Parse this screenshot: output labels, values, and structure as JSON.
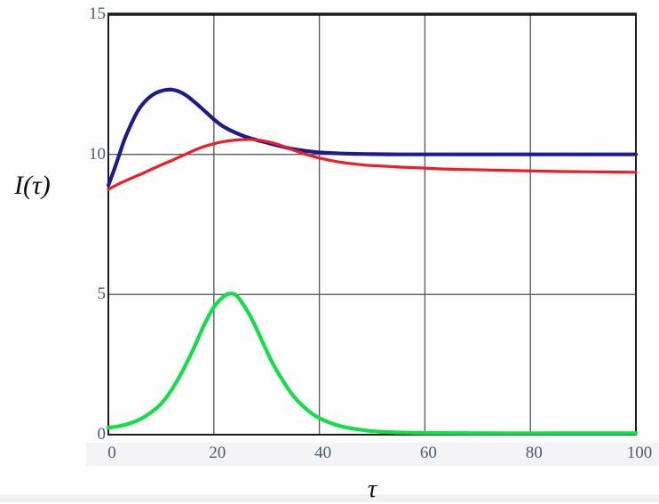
{
  "figure": {
    "background": "#fefefe",
    "tick_strip_color": "#f4f4f6",
    "bottom_strip_color": "#f1f1f4"
  },
  "chart_data": {
    "type": "line",
    "title": "",
    "xlabel": "τ",
    "ylabel": "I(τ)",
    "xlim": [
      0,
      100
    ],
    "ylim": [
      0,
      15
    ],
    "x_ticks": [
      0,
      20,
      40,
      60,
      80,
      100
    ],
    "y_ticks": [
      0,
      5,
      10,
      15
    ],
    "grid": true,
    "legend_position": "none",
    "colors": {
      "grid": "#5d5d5d",
      "border": "#1c1c1c",
      "tick_label": "#4d5a77",
      "axis_title": "#0d0d0d"
    },
    "series": [
      {
        "name": "navy-curve",
        "color": "#1b1b8e",
        "stroke_width": 4.2,
        "points": [
          [
            0,
            8.9
          ],
          [
            1,
            9.4
          ],
          [
            2,
            9.95
          ],
          [
            3,
            10.5
          ],
          [
            4,
            10.95
          ],
          [
            5,
            11.35
          ],
          [
            6,
            11.67
          ],
          [
            7,
            11.9
          ],
          [
            8,
            12.07
          ],
          [
            9,
            12.19
          ],
          [
            10,
            12.26
          ],
          [
            11,
            12.3
          ],
          [
            12,
            12.31
          ],
          [
            13,
            12.27
          ],
          [
            14,
            12.19
          ],
          [
            15,
            12.07
          ],
          [
            16,
            11.92
          ],
          [
            17,
            11.76
          ],
          [
            18,
            11.59
          ],
          [
            19,
            11.42
          ],
          [
            20,
            11.25
          ],
          [
            21,
            11.1
          ],
          [
            22,
            10.97
          ],
          [
            24,
            10.78
          ],
          [
            26,
            10.63
          ],
          [
            28,
            10.52
          ],
          [
            30,
            10.42
          ],
          [
            32,
            10.32
          ],
          [
            34,
            10.23
          ],
          [
            36,
            10.16
          ],
          [
            38,
            10.11
          ],
          [
            40,
            10.07
          ],
          [
            43,
            10.04
          ],
          [
            46,
            10.02
          ],
          [
            50,
            10.01
          ],
          [
            55,
            10.0
          ],
          [
            60,
            10.0
          ],
          [
            70,
            10.0
          ],
          [
            80,
            10.0
          ],
          [
            90,
            10.0
          ],
          [
            100,
            10.0
          ]
        ]
      },
      {
        "name": "red-curve",
        "color": "#ee1c24",
        "stroke_width": 3.2,
        "points": [
          [
            0,
            8.75
          ],
          [
            2,
            8.95
          ],
          [
            4,
            9.12
          ],
          [
            6,
            9.28
          ],
          [
            8,
            9.45
          ],
          [
            10,
            9.62
          ],
          [
            12,
            9.78
          ],
          [
            14,
            9.95
          ],
          [
            16,
            10.12
          ],
          [
            18,
            10.27
          ],
          [
            20,
            10.38
          ],
          [
            22,
            10.46
          ],
          [
            24,
            10.51
          ],
          [
            26,
            10.53
          ],
          [
            28,
            10.52
          ],
          [
            30,
            10.46
          ],
          [
            32,
            10.36
          ],
          [
            34,
            10.23
          ],
          [
            36,
            10.09
          ],
          [
            38,
            9.97
          ],
          [
            40,
            9.87
          ],
          [
            42,
            9.79
          ],
          [
            44,
            9.72
          ],
          [
            46,
            9.67
          ],
          [
            48,
            9.63
          ],
          [
            50,
            9.6
          ],
          [
            53,
            9.57
          ],
          [
            56,
            9.54
          ],
          [
            60,
            9.51
          ],
          [
            65,
            9.47
          ],
          [
            70,
            9.45
          ],
          [
            75,
            9.43
          ],
          [
            80,
            9.41
          ],
          [
            85,
            9.39
          ],
          [
            90,
            9.38
          ],
          [
            95,
            9.37
          ],
          [
            100,
            9.36
          ]
        ]
      },
      {
        "name": "green-curve",
        "color": "#10df45",
        "stroke_width": 4.2,
        "points": [
          [
            0,
            0.25
          ],
          [
            2,
            0.3
          ],
          [
            4,
            0.4
          ],
          [
            6,
            0.55
          ],
          [
            8,
            0.78
          ],
          [
            10,
            1.1
          ],
          [
            12,
            1.6
          ],
          [
            14,
            2.25
          ],
          [
            16,
            3.0
          ],
          [
            18,
            3.85
          ],
          [
            20,
            4.55
          ],
          [
            22,
            4.95
          ],
          [
            23,
            5.03
          ],
          [
            24,
            5.0
          ],
          [
            25,
            4.8
          ],
          [
            27,
            4.2
          ],
          [
            29,
            3.4
          ],
          [
            31,
            2.6
          ],
          [
            33,
            1.95
          ],
          [
            35,
            1.4
          ],
          [
            37,
            1.0
          ],
          [
            39,
            0.7
          ],
          [
            41,
            0.5
          ],
          [
            43,
            0.36
          ],
          [
            45,
            0.26
          ],
          [
            48,
            0.17
          ],
          [
            51,
            0.11
          ],
          [
            55,
            0.08
          ],
          [
            60,
            0.06
          ],
          [
            70,
            0.05
          ],
          [
            85,
            0.05
          ],
          [
            100,
            0.05
          ]
        ]
      }
    ]
  }
}
